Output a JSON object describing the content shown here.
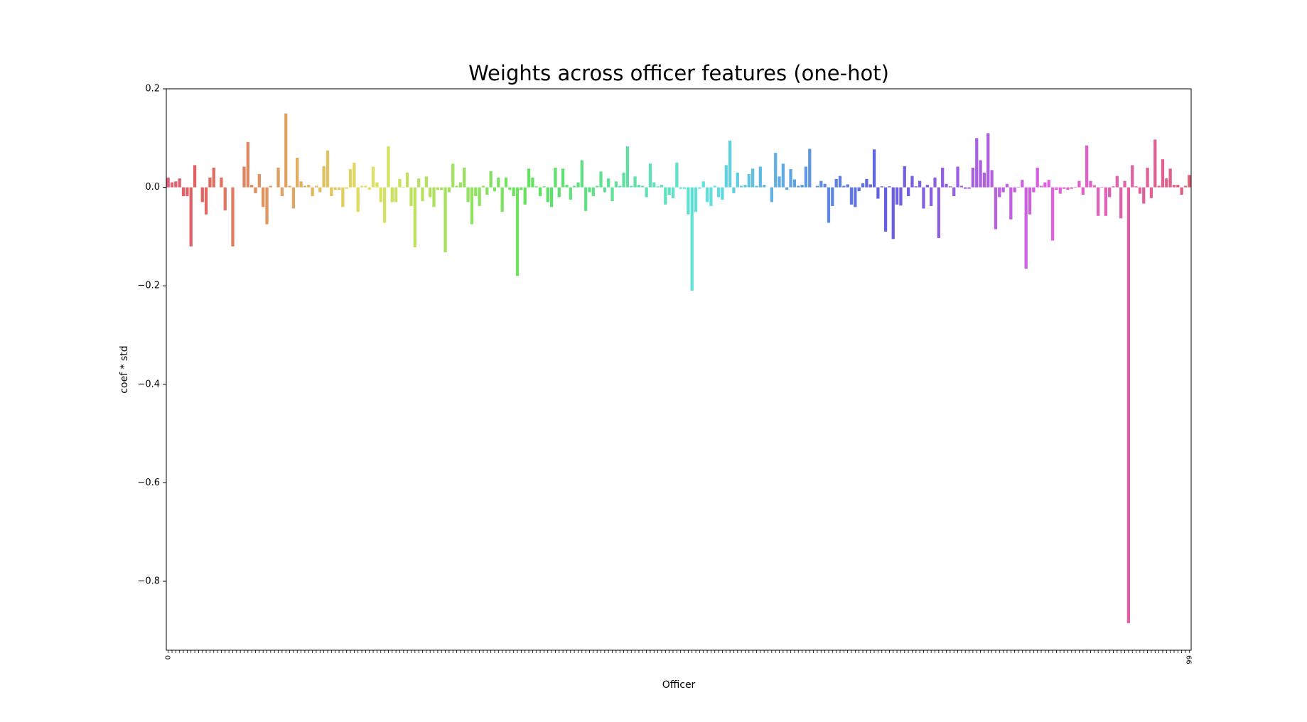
{
  "chart_data": {
    "type": "bar",
    "title": "Weights across officer features (one-hot)",
    "xlabel": "Officer",
    "ylabel": "coef * std",
    "palette": "husl",
    "ylim": [
      -0.94,
      0.2
    ],
    "yticks": [
      0.2,
      {
        "value": 0,
        "label": "0.0"
      },
      {
        "value": -0.2,
        "label": "−0.2"
      },
      {
        "value": -0.4,
        "label": "−0.4"
      },
      {
        "value": -0.6,
        "label": "−0.6"
      },
      {
        "value": -0.8,
        "label": "−0.8"
      }
    ],
    "categories": [
      "0",
      null,
      null,
      null,
      null,
      null,
      null,
      null,
      null,
      null,
      null,
      null,
      null,
      null,
      null,
      null,
      null,
      null,
      null,
      null,
      null,
      null,
      null,
      null,
      null,
      null,
      null,
      null,
      null,
      null,
      null,
      null,
      null,
      null,
      null,
      null,
      null,
      null,
      null,
      null,
      null,
      null,
      null,
      null,
      null,
      null,
      null,
      null,
      null,
      null,
      null,
      null,
      null,
      null,
      null,
      null,
      null,
      null,
      null,
      null,
      null,
      null,
      null,
      null,
      null,
      null,
      null,
      null,
      null,
      null,
      null,
      null,
      null,
      null,
      null,
      null,
      null,
      null,
      null,
      null,
      null,
      null,
      null,
      null,
      null,
      null,
      null,
      null,
      null,
      null,
      null,
      null,
      null,
      null,
      null,
      null,
      null,
      null,
      null,
      null,
      null,
      null,
      null,
      null,
      null,
      null,
      null,
      null,
      null,
      null,
      null,
      null,
      null,
      null,
      null,
      null,
      null,
      null,
      null,
      null,
      null,
      null,
      null,
      null,
      null,
      null,
      null,
      null,
      null,
      null,
      null,
      null,
      null,
      null,
      null,
      null,
      null,
      null,
      null,
      null,
      null,
      null,
      null,
      null,
      null,
      null,
      null,
      null,
      null,
      null,
      null,
      null,
      null,
      null,
      null,
      null,
      null,
      null,
      null,
      null,
      null,
      null,
      null,
      null,
      null,
      null,
      null,
      null,
      null,
      null,
      null,
      null,
      null,
      null,
      null,
      null,
      null,
      null,
      null,
      null,
      null,
      null,
      null,
      null,
      null,
      null,
      null,
      null,
      null,
      null,
      null,
      null,
      null,
      null,
      null,
      null,
      null,
      null,
      null,
      null,
      null,
      null,
      null,
      null,
      null,
      null,
      null,
      null,
      null,
      null,
      null,
      null,
      null,
      null,
      null,
      null,
      null,
      null,
      null,
      null,
      null,
      null,
      null,
      null,
      null,
      null,
      null,
      null,
      null,
      null,
      null,
      null,
      null,
      null,
      null,
      null,
      null,
      null,
      null,
      null,
      null,
      null,
      null,
      null,
      null,
      null,
      null,
      null,
      null,
      null,
      null,
      null,
      null,
      null,
      null,
      null,
      null,
      null,
      null,
      null,
      null,
      null,
      null,
      null,
      null,
      null,
      null,
      null,
      null,
      "99"
    ],
    "values": [
      0.02,
      0.01,
      0.012,
      0.018,
      -0.018,
      -0.018,
      -0.12,
      0.045,
      0,
      -0.03,
      -0.055,
      0.02,
      0.04,
      0,
      0.02,
      -0.047,
      0,
      -0.12,
      0,
      0,
      0.042,
      0.092,
      0.005,
      -0.012,
      0.027,
      -0.04,
      -0.075,
      0.003,
      0,
      0.04,
      -0.018,
      0.15,
      0.003,
      -0.043,
      0.06,
      0.012,
      0.003,
      0.005,
      -0.018,
      0.003,
      -0.01,
      0.043,
      0.075,
      -0.018,
      -0.005,
      -0.005,
      -0.04,
      -0.003,
      0.037,
      0.05,
      -0.05,
      0.003,
      0.003,
      -0.005,
      0.042,
      0.01,
      -0.03,
      -0.072,
      0.083,
      -0.03,
      -0.03,
      0.017,
      0.001,
      0.03,
      -0.038,
      -0.122,
      0.018,
      -0.028,
      0.022,
      -0.02,
      -0.04,
      -0.005,
      -0.005,
      -0.132,
      -0.01,
      0.048,
      0.003,
      0.01,
      0.04,
      -0.03,
      -0.075,
      -0.018,
      -0.038,
      0.003,
      -0.015,
      0.033,
      -0.008,
      0.02,
      -0.05,
      0.02,
      -0.005,
      -0.018,
      -0.18,
      -0.005,
      -0.035,
      0.038,
      0.02,
      0.002,
      -0.018,
      0.002,
      -0.03,
      -0.04,
      0.04,
      -0.02,
      0.038,
      0.005,
      -0.025,
      0.003,
      0.01,
      0.055,
      -0.048,
      -0.01,
      -0.018,
      0.003,
      0.032,
      -0.01,
      0.018,
      -0.028,
      0.012,
      0.003,
      0.03,
      0.083,
      0.003,
      0.022,
      0.005,
      0.003,
      -0.02,
      0.048,
      0.01,
      0.002,
      0.005,
      -0.035,
      -0.015,
      -0.022,
      0.05,
      -0.003,
      -0.003,
      -0.055,
      -0.21,
      -0.05,
      -0.003,
      0.012,
      -0.03,
      -0.038,
      0.003,
      -0.02,
      -0.025,
      0.045,
      0.095,
      -0.012,
      0.03,
      0.003,
      0.005,
      0.027,
      0.038,
      0.003,
      0.042,
      0.005,
      0,
      -0.03,
      0.07,
      0.022,
      0.048,
      -0.005,
      0.037,
      0.016,
      0.003,
      0.005,
      0.042,
      0.078,
      0,
      0.003,
      0.013,
      0.007,
      -0.072,
      -0.038,
      0.017,
      0.023,
      0.003,
      0.006,
      -0.035,
      -0.04,
      -0.008,
      0.008,
      0.017,
      0.006,
      0.077,
      -0.023,
      0.002,
      -0.09,
      0.002,
      -0.105,
      -0.035,
      -0.037,
      0.043,
      -0.018,
      0.023,
      0.002,
      0.013,
      -0.043,
      0.005,
      -0.038,
      0.02,
      -0.103,
      0.04,
      0.007,
      0.002,
      -0.018,
      0.042,
      0.003,
      -0.003,
      -0.003,
      0.04,
      0.1,
      0.055,
      0.03,
      0.11,
      0.035,
      -0.085,
      -0.02,
      -0.01,
      0.007,
      -0.065,
      -0.01,
      0.001,
      0.015,
      -0.165,
      -0.055,
      -0.01,
      0.04,
      0.003,
      0.01,
      0.015,
      -0.108,
      -0.005,
      -0.013,
      -0.003,
      -0.005,
      -0.003,
      0.001,
      0.013,
      -0.015,
      0.085,
      0.013,
      0.004,
      -0.058,
      0.001,
      -0.058,
      -0.02,
      0.002,
      0.023,
      -0.063,
      0.013,
      -0.885,
      0.045,
      0.002,
      -0.013,
      -0.033,
      0.04,
      -0.022,
      0.097,
      0.003,
      0.057,
      0.018,
      0.038,
      0.005,
      0.005,
      -0.015,
      0.003,
      0.025
    ]
  }
}
